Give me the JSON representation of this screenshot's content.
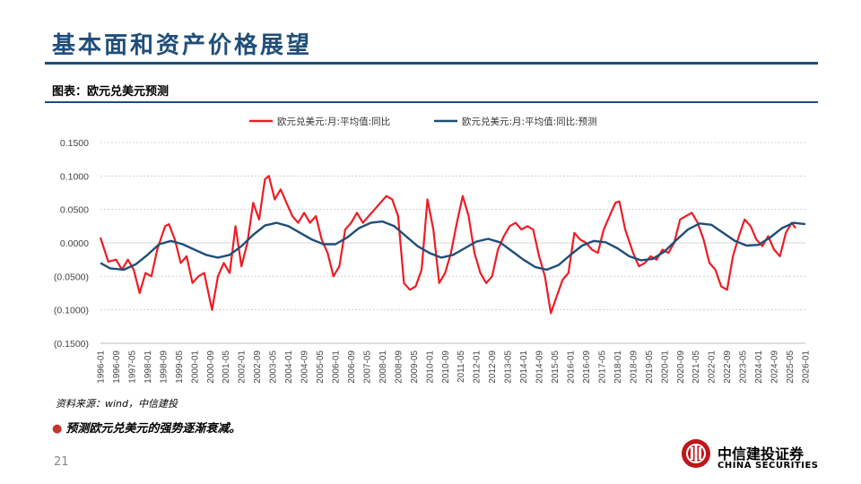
{
  "page": {
    "title": "基本面和资产价格展望",
    "subtitle": "图表：欧元兑美元预测",
    "source": "资料来源：wind，中信建投",
    "bullet": "预测欧元兑美元的强势逐渐衰减。",
    "page_number": "21",
    "logo_cn": "中信建投证券",
    "logo_en": "CHINA SECURITIES",
    "brand_color": "#1f4e79",
    "logo_color": "#c0161c",
    "logo_icon": "china-securities-logo-icon"
  },
  "chart_data": {
    "type": "line",
    "ylim": [
      -0.15,
      0.15
    ],
    "y_ticks": [
      0.15,
      0.1,
      0.05,
      0.0,
      -0.05,
      -0.1,
      -0.15
    ],
    "y_tick_labels": [
      "0.1500",
      "0.1000",
      "0.0500",
      "0.0000",
      "(0.0500)",
      "(0.1000)",
      "(0.1500)"
    ],
    "grid": "horizontal",
    "legend_position": "top",
    "x_range": [
      "1996-01",
      "2026-01"
    ],
    "x_ticks": [
      "1996-01",
      "1996-09",
      "1997-05",
      "1998-01",
      "1998-09",
      "1999-05",
      "2000-01",
      "2000-09",
      "2001-05",
      "2002-01",
      "2002-09",
      "2003-05",
      "2004-01",
      "2004-09",
      "2005-05",
      "2006-01",
      "2006-09",
      "2007-05",
      "2008-01",
      "2008-09",
      "2009-05",
      "2010-01",
      "2010-09",
      "2011-05",
      "2012-01",
      "2012-09",
      "2013-05",
      "2014-01",
      "2014-09",
      "2015-05",
      "2016-01",
      "2016-09",
      "2017-05",
      "2018-01",
      "2018-09",
      "2019-05",
      "2020-01",
      "2020-09",
      "2021-05",
      "2022-01",
      "2022-09",
      "2023-05",
      "2024-01",
      "2024-09",
      "2025-05",
      "2026-01"
    ],
    "series": [
      {
        "name": "欧元兑美元:月:平均值:同比",
        "color": "#ee1c25",
        "points": [
          [
            "1996-01",
            0.008
          ],
          [
            "1996-05",
            -0.028
          ],
          [
            "1996-09",
            -0.025
          ],
          [
            "1996-12",
            -0.04
          ],
          [
            "1997-03",
            -0.025
          ],
          [
            "1997-06",
            -0.04
          ],
          [
            "1997-09",
            -0.075
          ],
          [
            "1997-12",
            -0.045
          ],
          [
            "1998-03",
            -0.05
          ],
          [
            "1998-06",
            -0.01
          ],
          [
            "1998-10",
            0.025
          ],
          [
            "1998-12",
            0.028
          ],
          [
            "1999-03",
            0.005
          ],
          [
            "1999-06",
            -0.03
          ],
          [
            "1999-09",
            -0.02
          ],
          [
            "1999-12",
            -0.06
          ],
          [
            "2000-03",
            -0.05
          ],
          [
            "2000-06",
            -0.045
          ],
          [
            "2000-10",
            -0.1
          ],
          [
            "2001-01",
            -0.05
          ],
          [
            "2001-04",
            -0.03
          ],
          [
            "2001-07",
            -0.045
          ],
          [
            "2001-10",
            0.025
          ],
          [
            "2002-01",
            -0.035
          ],
          [
            "2002-04",
            0.0
          ],
          [
            "2002-07",
            0.06
          ],
          [
            "2002-10",
            0.035
          ],
          [
            "2003-01",
            0.095
          ],
          [
            "2003-03",
            0.1
          ],
          [
            "2003-06",
            0.065
          ],
          [
            "2003-09",
            0.08
          ],
          [
            "2003-12",
            0.06
          ],
          [
            "2004-03",
            0.04
          ],
          [
            "2004-06",
            0.03
          ],
          [
            "2004-09",
            0.045
          ],
          [
            "2004-12",
            0.03
          ],
          [
            "2005-03",
            0.04
          ],
          [
            "2005-06",
            0.005
          ],
          [
            "2005-09",
            -0.015
          ],
          [
            "2005-12",
            -0.05
          ],
          [
            "2006-03",
            -0.035
          ],
          [
            "2006-06",
            0.02
          ],
          [
            "2006-09",
            0.03
          ],
          [
            "2006-12",
            0.045
          ],
          [
            "2007-03",
            0.03
          ],
          [
            "2007-06",
            0.04
          ],
          [
            "2007-09",
            0.05
          ],
          [
            "2007-12",
            0.06
          ],
          [
            "2008-03",
            0.07
          ],
          [
            "2008-06",
            0.065
          ],
          [
            "2008-09",
            0.04
          ],
          [
            "2008-12",
            -0.06
          ],
          [
            "2009-03",
            -0.07
          ],
          [
            "2009-06",
            -0.065
          ],
          [
            "2009-09",
            -0.04
          ],
          [
            "2009-12",
            0.065
          ],
          [
            "2010-03",
            0.02
          ],
          [
            "2010-06",
            -0.06
          ],
          [
            "2010-09",
            -0.045
          ],
          [
            "2010-12",
            -0.015
          ],
          [
            "2011-03",
            0.03
          ],
          [
            "2011-06",
            0.07
          ],
          [
            "2011-09",
            0.04
          ],
          [
            "2011-12",
            -0.015
          ],
          [
            "2012-03",
            -0.045
          ],
          [
            "2012-06",
            -0.06
          ],
          [
            "2012-09",
            -0.05
          ],
          [
            "2012-12",
            -0.01
          ],
          [
            "2013-03",
            0.01
          ],
          [
            "2013-06",
            0.025
          ],
          [
            "2013-09",
            0.03
          ],
          [
            "2013-12",
            0.02
          ],
          [
            "2014-03",
            0.025
          ],
          [
            "2014-06",
            0.02
          ],
          [
            "2014-09",
            -0.02
          ],
          [
            "2014-12",
            -0.05
          ],
          [
            "2015-03",
            -0.105
          ],
          [
            "2015-06",
            -0.08
          ],
          [
            "2015-09",
            -0.055
          ],
          [
            "2015-12",
            -0.045
          ],
          [
            "2016-03",
            0.015
          ],
          [
            "2016-06",
            0.005
          ],
          [
            "2016-09",
            0.0
          ],
          [
            "2016-12",
            -0.01
          ],
          [
            "2017-03",
            -0.015
          ],
          [
            "2017-06",
            0.02
          ],
          [
            "2017-09",
            0.04
          ],
          [
            "2017-12",
            0.06
          ],
          [
            "2018-02",
            0.062
          ],
          [
            "2018-05",
            0.02
          ],
          [
            "2018-09",
            -0.015
          ],
          [
            "2018-12",
            -0.035
          ],
          [
            "2019-03",
            -0.03
          ],
          [
            "2019-06",
            -0.02
          ],
          [
            "2019-09",
            -0.025
          ],
          [
            "2019-12",
            -0.01
          ],
          [
            "2020-03",
            -0.015
          ],
          [
            "2020-06",
            0.0
          ],
          [
            "2020-09",
            0.035
          ],
          [
            "2020-12",
            0.04
          ],
          [
            "2021-03",
            0.045
          ],
          [
            "2021-06",
            0.03
          ],
          [
            "2021-09",
            0.005
          ],
          [
            "2021-12",
            -0.03
          ],
          [
            "2022-03",
            -0.04
          ],
          [
            "2022-06",
            -0.065
          ],
          [
            "2022-09",
            -0.07
          ],
          [
            "2022-12",
            -0.02
          ],
          [
            "2023-03",
            0.01
          ],
          [
            "2023-06",
            0.035
          ],
          [
            "2023-09",
            0.025
          ],
          [
            "2023-12",
            0.005
          ],
          [
            "2024-03",
            -0.005
          ],
          [
            "2024-06",
            0.01
          ],
          [
            "2024-09",
            -0.01
          ],
          [
            "2024-12",
            -0.02
          ],
          [
            "2025-03",
            0.015
          ],
          [
            "2025-06",
            0.03
          ],
          [
            "2025-08",
            0.022
          ]
        ]
      },
      {
        "name": "欧元兑美元:月:平均值:同比:预测",
        "color": "#1f4e79",
        "points": [
          [
            "1996-01",
            -0.03
          ],
          [
            "1996-06",
            -0.038
          ],
          [
            "1997-01",
            -0.04
          ],
          [
            "1997-07",
            -0.032
          ],
          [
            "1998-01",
            -0.018
          ],
          [
            "1998-07",
            -0.002
          ],
          [
            "1999-01",
            0.003
          ],
          [
            "1999-07",
            -0.002
          ],
          [
            "2000-01",
            -0.01
          ],
          [
            "2000-07",
            -0.018
          ],
          [
            "2001-01",
            -0.022
          ],
          [
            "2001-07",
            -0.018
          ],
          [
            "2002-01",
            -0.005
          ],
          [
            "2002-07",
            0.012
          ],
          [
            "2003-01",
            0.026
          ],
          [
            "2003-07",
            0.03
          ],
          [
            "2004-01",
            0.025
          ],
          [
            "2004-07",
            0.015
          ],
          [
            "2005-01",
            0.005
          ],
          [
            "2005-07",
            -0.002
          ],
          [
            "2006-01",
            -0.002
          ],
          [
            "2006-07",
            0.008
          ],
          [
            "2007-01",
            0.022
          ],
          [
            "2007-07",
            0.03
          ],
          [
            "2008-01",
            0.032
          ],
          [
            "2008-07",
            0.025
          ],
          [
            "2009-01",
            0.01
          ],
          [
            "2009-07",
            -0.005
          ],
          [
            "2010-01",
            -0.015
          ],
          [
            "2010-07",
            -0.022
          ],
          [
            "2011-01",
            -0.018
          ],
          [
            "2011-07",
            -0.008
          ],
          [
            "2012-01",
            0.002
          ],
          [
            "2012-07",
            0.006
          ],
          [
            "2013-01",
            0.001
          ],
          [
            "2013-07",
            -0.012
          ],
          [
            "2014-01",
            -0.025
          ],
          [
            "2014-07",
            -0.036
          ],
          [
            "2015-01",
            -0.04
          ],
          [
            "2015-07",
            -0.033
          ],
          [
            "2016-01",
            -0.018
          ],
          [
            "2016-07",
            -0.004
          ],
          [
            "2017-01",
            0.003
          ],
          [
            "2017-07",
            0.001
          ],
          [
            "2018-01",
            -0.008
          ],
          [
            "2018-07",
            -0.02
          ],
          [
            "2019-01",
            -0.026
          ],
          [
            "2019-07",
            -0.024
          ],
          [
            "2020-01",
            -0.013
          ],
          [
            "2020-07",
            0.004
          ],
          [
            "2021-01",
            0.02
          ],
          [
            "2021-07",
            0.029
          ],
          [
            "2022-01",
            0.027
          ],
          [
            "2022-07",
            0.015
          ],
          [
            "2023-01",
            0.003
          ],
          [
            "2023-07",
            -0.004
          ],
          [
            "2024-01",
            -0.003
          ],
          [
            "2024-07",
            0.008
          ],
          [
            "2025-01",
            0.022
          ],
          [
            "2025-07",
            0.03
          ],
          [
            "2026-01",
            0.028
          ]
        ]
      }
    ]
  }
}
